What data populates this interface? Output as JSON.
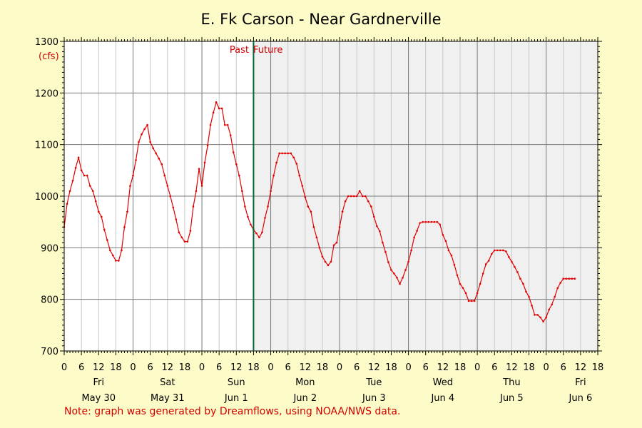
{
  "colors": {
    "background": "#fdfcc8",
    "plot_past": "#ffffff",
    "plot_future": "#f0f0f0",
    "line": "#e00000",
    "now_line": "#006633",
    "grid_major": "#777777",
    "grid_minor": "#c8c8c8",
    "accent_text": "#d40000"
  },
  "note": "Note: graph was generated by Dreamflows, using NOAA/NWS data.",
  "chart_data": {
    "type": "line",
    "title": "E. Fk Carson - Near Gardnerville",
    "ylabel": "(cfs)",
    "ylim": [
      700,
      1300
    ],
    "yticks": [
      700,
      800,
      900,
      1000,
      1100,
      1200,
      1300
    ],
    "xlim_hours": [
      0,
      186
    ],
    "x_tick_labels": [
      "0",
      "6",
      "12",
      "18",
      "0",
      "6",
      "12",
      "18",
      "0",
      "6",
      "12",
      "18",
      "0",
      "6",
      "12",
      "18",
      "0",
      "6",
      "12",
      "18",
      "0",
      "6",
      "12",
      "18",
      "0",
      "6",
      "12",
      "18",
      "0",
      "6",
      "12",
      "18"
    ],
    "days": [
      {
        "name": "Fri",
        "date": "May 30"
      },
      {
        "name": "Sat",
        "date": "May 31"
      },
      {
        "name": "Sun",
        "date": "Jun 1"
      },
      {
        "name": "Mon",
        "date": "Jun 2"
      },
      {
        "name": "Tue",
        "date": "Jun 3"
      },
      {
        "name": "Wed",
        "date": "Jun 4"
      },
      {
        "name": "Thu",
        "date": "Jun 5"
      },
      {
        "name": "Fri",
        "date": "Jun 6"
      }
    ],
    "past_label": "Past",
    "future_label": "Future",
    "now_hour": 66,
    "grid": true,
    "series": [
      {
        "points": [
          [
            0,
            940
          ],
          [
            1,
            985
          ],
          [
            2,
            1010
          ],
          [
            3,
            1030
          ],
          [
            4,
            1055
          ],
          [
            5,
            1075
          ],
          [
            6,
            1050
          ],
          [
            7,
            1040
          ],
          [
            8,
            1040
          ],
          [
            9,
            1020
          ],
          [
            10,
            1010
          ],
          [
            11,
            990
          ],
          [
            12,
            970
          ],
          [
            13,
            960
          ],
          [
            14,
            935
          ],
          [
            15,
            915
          ],
          [
            16,
            895
          ],
          [
            17,
            885
          ],
          [
            18,
            875
          ],
          [
            19,
            875
          ],
          [
            20,
            895
          ],
          [
            21,
            940
          ],
          [
            22,
            970
          ],
          [
            23,
            1020
          ],
          [
            24,
            1040
          ],
          [
            25,
            1070
          ],
          [
            26,
            1105
          ],
          [
            27,
            1120
          ],
          [
            28,
            1130
          ],
          [
            29,
            1138
          ],
          [
            30,
            1105
          ],
          [
            31,
            1093
          ],
          [
            32,
            1083
          ],
          [
            33,
            1073
          ],
          [
            34,
            1062
          ],
          [
            35,
            1040
          ],
          [
            36,
            1020
          ],
          [
            37,
            1000
          ],
          [
            38,
            978
          ],
          [
            39,
            955
          ],
          [
            40,
            930
          ],
          [
            41,
            920
          ],
          [
            42,
            912
          ],
          [
            43,
            912
          ],
          [
            44,
            933
          ],
          [
            45,
            980
          ],
          [
            46,
            1010
          ],
          [
            47,
            1053
          ],
          [
            48,
            1020
          ],
          [
            49,
            1065
          ],
          [
            50,
            1098
          ],
          [
            51,
            1138
          ],
          [
            52,
            1162
          ],
          [
            53,
            1182
          ],
          [
            54,
            1170
          ],
          [
            55,
            1170
          ],
          [
            56,
            1138
          ],
          [
            57,
            1138
          ],
          [
            58,
            1118
          ],
          [
            59,
            1085
          ],
          [
            60,
            1062
          ],
          [
            61,
            1040
          ],
          [
            62,
            1010
          ],
          [
            63,
            980
          ],
          [
            64,
            960
          ],
          [
            65,
            945
          ],
          [
            66,
            935
          ],
          [
            67,
            928
          ],
          [
            68,
            920
          ],
          [
            69,
            930
          ],
          [
            70,
            958
          ],
          [
            71,
            980
          ],
          [
            72,
            1010
          ],
          [
            73,
            1040
          ],
          [
            74,
            1065
          ],
          [
            75,
            1083
          ],
          [
            76,
            1083
          ],
          [
            77,
            1083
          ],
          [
            78,
            1083
          ],
          [
            79,
            1083
          ],
          [
            80,
            1075
          ],
          [
            81,
            1063
          ],
          [
            82,
            1040
          ],
          [
            83,
            1020
          ],
          [
            84,
            998
          ],
          [
            85,
            980
          ],
          [
            86,
            970
          ],
          [
            87,
            940
          ],
          [
            88,
            920
          ],
          [
            89,
            900
          ],
          [
            90,
            883
          ],
          [
            91,
            873
          ],
          [
            92,
            866
          ],
          [
            93,
            873
          ],
          [
            94,
            905
          ],
          [
            95,
            910
          ],
          [
            96,
            940
          ],
          [
            97,
            970
          ],
          [
            98,
            990
          ],
          [
            99,
            1000
          ],
          [
            100,
            1000
          ],
          [
            101,
            1000
          ],
          [
            102,
            1000
          ],
          [
            103,
            1010
          ],
          [
            104,
            1000
          ],
          [
            105,
            1000
          ],
          [
            106,
            990
          ],
          [
            107,
            980
          ],
          [
            108,
            960
          ],
          [
            109,
            942
          ],
          [
            110,
            932
          ],
          [
            111,
            910
          ],
          [
            112,
            892
          ],
          [
            113,
            872
          ],
          [
            114,
            857
          ],
          [
            115,
            850
          ],
          [
            116,
            842
          ],
          [
            117,
            830
          ],
          [
            118,
            842
          ],
          [
            119,
            857
          ],
          [
            120,
            873
          ],
          [
            121,
            895
          ],
          [
            122,
            920
          ],
          [
            123,
            933
          ],
          [
            124,
            948
          ],
          [
            125,
            950
          ],
          [
            126,
            950
          ],
          [
            127,
            950
          ],
          [
            128,
            950
          ],
          [
            129,
            950
          ],
          [
            130,
            950
          ],
          [
            131,
            945
          ],
          [
            132,
            925
          ],
          [
            133,
            913
          ],
          [
            134,
            895
          ],
          [
            135,
            885
          ],
          [
            136,
            867
          ],
          [
            137,
            847
          ],
          [
            138,
            830
          ],
          [
            139,
            822
          ],
          [
            140,
            812
          ],
          [
            141,
            797
          ],
          [
            142,
            797
          ],
          [
            143,
            797
          ],
          [
            144,
            812
          ],
          [
            145,
            830
          ],
          [
            146,
            850
          ],
          [
            147,
            868
          ],
          [
            148,
            875
          ],
          [
            149,
            888
          ],
          [
            150,
            895
          ],
          [
            151,
            895
          ],
          [
            152,
            895
          ],
          [
            153,
            895
          ],
          [
            154,
            893
          ],
          [
            155,
            882
          ],
          [
            156,
            873
          ],
          [
            157,
            863
          ],
          [
            158,
            853
          ],
          [
            159,
            840
          ],
          [
            160,
            830
          ],
          [
            161,
            815
          ],
          [
            162,
            805
          ],
          [
            163,
            788
          ],
          [
            164,
            770
          ],
          [
            165,
            770
          ],
          [
            166,
            765
          ],
          [
            167,
            757
          ],
          [
            168,
            765
          ],
          [
            169,
            780
          ],
          [
            170,
            790
          ],
          [
            171,
            805
          ],
          [
            172,
            822
          ],
          [
            173,
            832
          ],
          [
            174,
            840
          ],
          [
            175,
            840
          ],
          [
            176,
            840
          ],
          [
            177,
            840
          ],
          [
            178,
            840
          ]
        ]
      }
    ]
  }
}
